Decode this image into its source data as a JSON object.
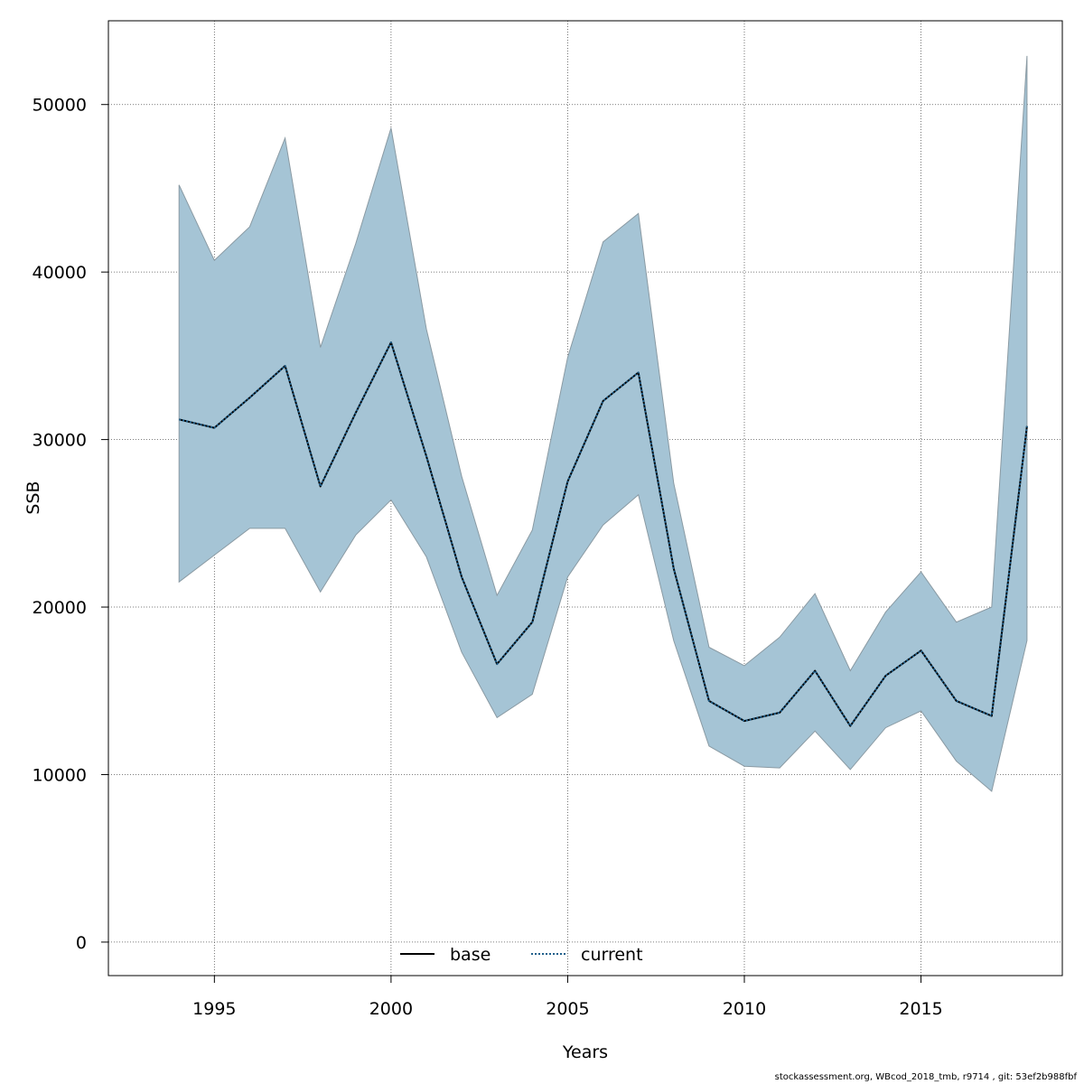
{
  "chart_data": {
    "type": "line",
    "title": "",
    "xlabel": "Years",
    "ylabel": "SSB",
    "xlim": [
      1992,
      2019
    ],
    "ylim": [
      -2000,
      55000
    ],
    "x_ticks": [
      1995,
      2000,
      2005,
      2010,
      2015
    ],
    "y_ticks": [
      0,
      10000,
      20000,
      30000,
      40000,
      50000
    ],
    "grid": true,
    "legend_position": "bottom-center",
    "years": [
      1994,
      1995,
      1996,
      1997,
      1998,
      1999,
      2000,
      2001,
      2002,
      2003,
      2004,
      2005,
      2006,
      2007,
      2008,
      2009,
      2010,
      2011,
      2012,
      2013,
      2014,
      2015,
      2016,
      2017,
      2018
    ],
    "series": [
      {
        "name": "base",
        "line_style": "solid",
        "color": "#000000",
        "values": [
          31200,
          30700,
          32500,
          34400,
          27200,
          31600,
          35800,
          29000,
          21800,
          16600,
          19100,
          27500,
          32300,
          34000,
          22300,
          14400,
          13200,
          13700,
          16200,
          12900,
          15900,
          17400,
          14400,
          13500,
          30800
        ]
      },
      {
        "name": "current",
        "line_style": "dotted",
        "color": "#1f5f8b",
        "values": [
          31200,
          30700,
          32500,
          34400,
          27200,
          31600,
          35800,
          29000,
          21800,
          16600,
          19100,
          27500,
          32300,
          34000,
          22300,
          14400,
          13200,
          13700,
          16200,
          12900,
          15900,
          17400,
          14400,
          13500,
          30800
        ]
      }
    ],
    "confidence_band": {
      "color": "#a5c4d5",
      "edge_color": "#8a9aa3",
      "upper": [
        45200,
        40700,
        42700,
        48000,
        35500,
        41700,
        48600,
        36600,
        27800,
        20700,
        24600,
        34900,
        41800,
        43500,
        27400,
        17600,
        16500,
        18200,
        20800,
        16200,
        19700,
        22100,
        19100,
        20000,
        52900
      ],
      "lower": [
        21500,
        23100,
        24700,
        24700,
        20900,
        24300,
        26400,
        23000,
        17300,
        13400,
        14800,
        21800,
        24900,
        26700,
        18000,
        11700,
        10500,
        10400,
        12600,
        10300,
        12800,
        13800,
        10800,
        9000,
        18000
      ]
    }
  },
  "footer": {
    "text": "stockassessment.org, WBcod_2018_tmb, r9714 , git: 53ef2b988fbf"
  }
}
